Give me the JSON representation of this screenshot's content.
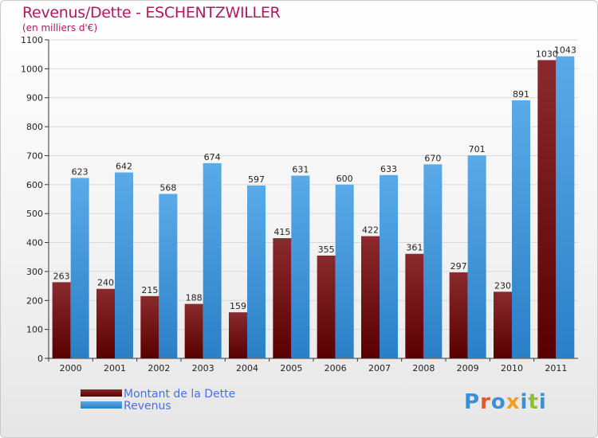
{
  "header": {
    "title": "Revenus/Dette - ESCHENTZWILLER",
    "subtitle": "(en milliers d'€)"
  },
  "brand": {
    "logo_text": "Proxiti",
    "letter_colors": [
      "#3a8fd6",
      "#e2572b",
      "#3a8fd6",
      "#f0a020",
      "#3a8fd6",
      "#8fbf2a",
      "#3a8fd6"
    ]
  },
  "colors": {
    "dette": "#7a1a1c",
    "revenus": "#3f98dd",
    "grid": "#d9d9d9",
    "axis": "#333333"
  },
  "chart_data": {
    "type": "bar",
    "title": "Revenus/Dette - ESCHENTZWILLER",
    "ylabel": "(en milliers d'€)",
    "categories": [
      "2000",
      "2001",
      "2002",
      "2003",
      "2004",
      "2005",
      "2006",
      "2007",
      "2008",
      "2009",
      "2010",
      "2011"
    ],
    "series": [
      {
        "name": "Montant de la Dette",
        "values": [
          263,
          240,
          215,
          188,
          159,
          415,
          355,
          422,
          361,
          297,
          230,
          1030
        ]
      },
      {
        "name": "Revenus",
        "values": [
          623,
          642,
          568,
          674,
          597,
          631,
          600,
          633,
          670,
          701,
          891,
          1043
        ]
      }
    ],
    "ylim": [
      0,
      1100
    ],
    "yticks": [
      0,
      100,
      200,
      300,
      400,
      500,
      600,
      700,
      800,
      900,
      1000,
      1100
    ],
    "grid": true,
    "legend": "bottom-left"
  }
}
